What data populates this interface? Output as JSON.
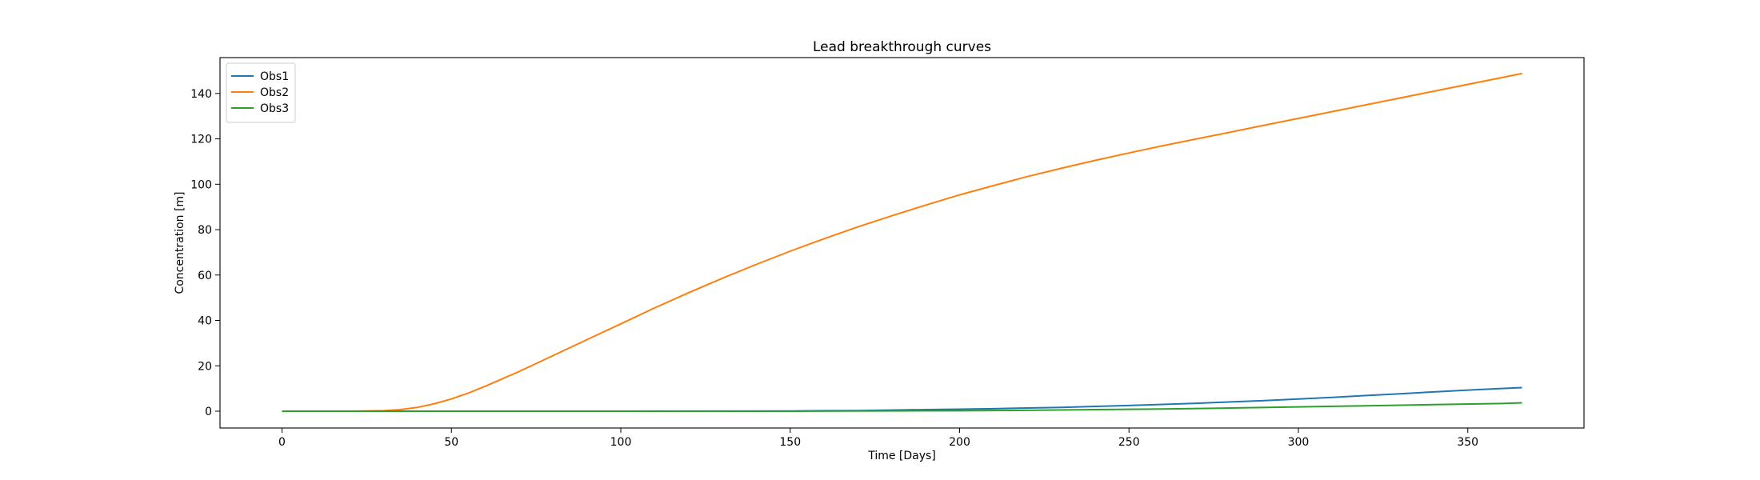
{
  "chart_data": {
    "type": "line",
    "title": "Lead breakthrough curves",
    "xlabel": "Time [Days]",
    "ylabel": "Concentration [m]",
    "xlim": [
      -18.3,
      384.3
    ],
    "ylim": [
      -7.4,
      155.8
    ],
    "xticks": [
      0,
      50,
      100,
      150,
      200,
      250,
      300,
      350
    ],
    "yticks": [
      0,
      20,
      40,
      60,
      80,
      100,
      120,
      140
    ],
    "grid": false,
    "legend_position": "upper left",
    "series": [
      {
        "name": "Obs1",
        "color": "#1f77b4",
        "x": [
          0,
          50,
          100,
          150,
          160,
          170,
          180,
          190,
          200,
          210,
          220,
          230,
          240,
          250,
          260,
          270,
          280,
          290,
          300,
          310,
          320,
          330,
          340,
          350,
          360,
          366
        ],
        "y": [
          0,
          0,
          0,
          0.1,
          0.2,
          0.3,
          0.5,
          0.7,
          0.9,
          1.1,
          1.4,
          1.7,
          2.1,
          2.5,
          3.0,
          3.5,
          4.1,
          4.7,
          5.4,
          6.1,
          6.9,
          7.7,
          8.5,
          9.3,
          10.0,
          10.4
        ]
      },
      {
        "name": "Obs2",
        "color": "#ff7f0e",
        "x": [
          0,
          20,
          30,
          35,
          40,
          45,
          50,
          55,
          60,
          70,
          80,
          90,
          100,
          110,
          120,
          130,
          140,
          150,
          160,
          170,
          180,
          190,
          200,
          210,
          220,
          230,
          240,
          250,
          260,
          270,
          280,
          290,
          300,
          310,
          320,
          330,
          340,
          350,
          360,
          366
        ],
        "y": [
          0,
          0,
          0.2,
          0.7,
          1.7,
          3.3,
          5.4,
          8.0,
          11,
          17.5,
          24.5,
          31.5,
          38.5,
          45.5,
          52.2,
          58.6,
          64.7,
          70.5,
          76.0,
          81.2,
          86.1,
          90.8,
          95.3,
          99.4,
          103.4,
          107.0,
          110.5,
          113.8,
          117.0,
          120.0,
          123.0,
          126.0,
          129.0,
          132.0,
          135.0,
          138.0,
          141.0,
          144.0,
          147.0,
          148.8
        ]
      },
      {
        "name": "Obs3",
        "color": "#2ca02c",
        "x": [
          0,
          100,
          150,
          200,
          220,
          240,
          260,
          280,
          300,
          320,
          340,
          360,
          366
        ],
        "y": [
          0,
          0,
          0,
          0.2,
          0.4,
          0.7,
          1.0,
          1.4,
          1.9,
          2.4,
          2.9,
          3.4,
          3.7
        ]
      }
    ]
  }
}
